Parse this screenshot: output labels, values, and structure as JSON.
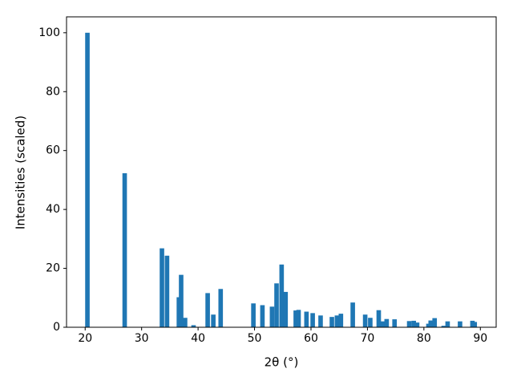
{
  "chart_data": {
    "type": "bar",
    "x_label": "2θ (°)",
    "y_label": "Intensities (scaled)",
    "color": "#1f77b4",
    "x": [
      20.4,
      27.0,
      33.6,
      34.5,
      36.6,
      37.0,
      37.7,
      39.2,
      41.7,
      42.7,
      44.0,
      49.8,
      51.4,
      53.1,
      53.9,
      54.8,
      55.5,
      57.3,
      57.8,
      59.2,
      60.3,
      61.7,
      63.7,
      64.6,
      65.3,
      67.4,
      69.6,
      70.5,
      72.0,
      72.7,
      73.4,
      74.8,
      77.4,
      78.2,
      78.8,
      80.8,
      81.2,
      81.9,
      83.5,
      84.2,
      86.4,
      88.6,
      89.0
    ],
    "values": [
      100,
      52.3,
      26.8,
      24.3,
      10.2,
      17.8,
      3.2,
      0.7,
      11.6,
      4.3,
      13.0,
      8.1,
      7.5,
      7.0,
      14.9,
      21.3,
      12.0,
      5.7,
      5.9,
      5.3,
      4.8,
      4.0,
      3.5,
      4.0,
      4.6,
      8.4,
      4.3,
      3.2,
      5.8,
      2.0,
      2.8,
      2.7,
      2.1,
      2.2,
      1.6,
      1.2,
      2.3,
      3.1,
      0.5,
      2.0,
      2.0,
      2.2,
      1.8
    ],
    "xlim": [
      16.7,
      92.8
    ],
    "xticks": [
      20,
      30,
      40,
      50,
      60,
      70,
      80,
      90
    ],
    "ylim": [
      0,
      105.4
    ],
    "yticks": [
      0,
      20,
      40,
      60,
      80,
      100
    ],
    "grid": false
  }
}
